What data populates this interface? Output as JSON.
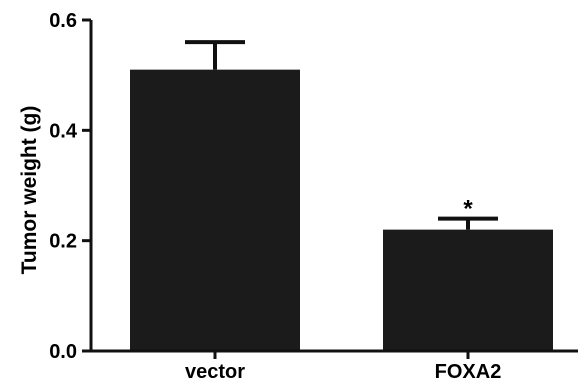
{
  "chart_data": {
    "type": "bar",
    "title": "",
    "xlabel": "",
    "ylabel": "Tumor weight (g)",
    "categories": [
      "vector",
      "FOXA2"
    ],
    "values": [
      0.51,
      0.22
    ],
    "error_upper": [
      0.05,
      0.02
    ],
    "annotations": [
      "",
      "*"
    ],
    "ylim": [
      0,
      0.6
    ],
    "yticks": [
      0.0,
      0.2,
      0.4,
      0.6
    ],
    "ytick_labels": [
      "0.0",
      "0.2",
      "0.4",
      "0.6"
    ],
    "grid": false,
    "legend": "none",
    "bar_color": "#1b1b1b"
  }
}
